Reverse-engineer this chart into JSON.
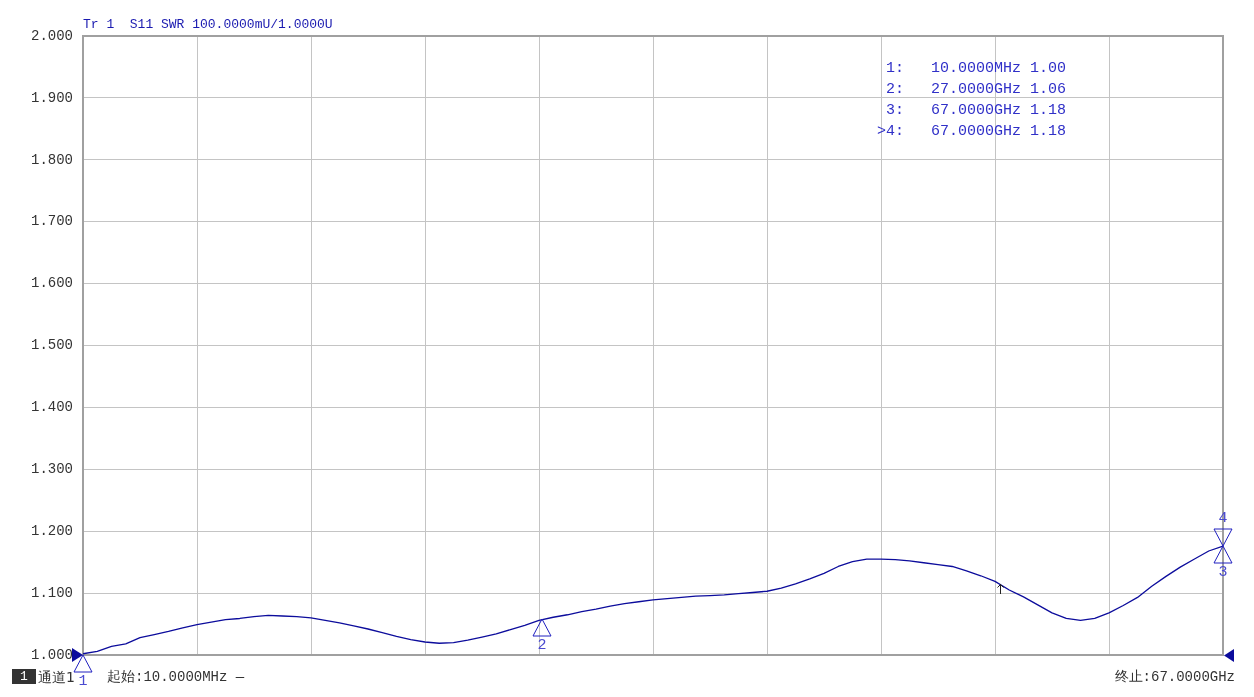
{
  "chart_data": {
    "type": "line",
    "title": "Tr 1  S11 SWR 100.0000mU/1.0000U",
    "categories": [
      null,
      null,
      null,
      null,
      null,
      null,
      null,
      null,
      null,
      null,
      null,
      null,
      null,
      null,
      null,
      null,
      null,
      null,
      null,
      null,
      null,
      null,
      null,
      null,
      null,
      null,
      null,
      null,
      null,
      null,
      null,
      null,
      null,
      null,
      null,
      null,
      null,
      null,
      null,
      null,
      null,
      null,
      null,
      null,
      null,
      null,
      null,
      null,
      null,
      null,
      null,
      null,
      null,
      null,
      null,
      null,
      null,
      null,
      null,
      null,
      null,
      null,
      null,
      null,
      null,
      null,
      null,
      null,
      null,
      null,
      null,
      null,
      null,
      null,
      null,
      null,
      null,
      null,
      null,
      null,
      null
    ],
    "values": [
      1.002,
      1.006,
      1.014,
      1.018,
      1.028,
      1.033,
      1.038,
      1.044,
      1.049,
      1.053,
      1.057,
      1.059,
      1.062,
      1.064,
      1.063,
      1.062,
      1.06,
      1.056,
      1.052,
      1.047,
      1.042,
      1.036,
      1.03,
      1.025,
      1.021,
      1.019,
      1.02,
      1.024,
      1.029,
      1.034,
      1.041,
      1.048,
      1.056,
      1.061,
      1.065,
      1.07,
      1.074,
      1.079,
      1.083,
      1.086,
      1.089,
      1.091,
      1.093,
      1.095,
      1.096,
      1.097,
      1.099,
      1.101,
      1.103,
      1.108,
      1.115,
      1.123,
      1.132,
      1.143,
      1.151,
      1.155,
      1.155,
      1.154,
      1.152,
      1.149,
      1.146,
      1.143,
      1.136,
      1.128,
      1.119,
      1.105,
      1.094,
      1.081,
      1.068,
      1.059,
      1.056,
      1.059,
      1.068,
      1.08,
      1.093,
      1.111,
      1.127,
      1.142,
      1.155,
      1.168,
      1.176
    ],
    "color": "#0c0c9c",
    "ylim": [
      1,
      2
    ],
    "yticks": [
      {
        "value": 1,
        "label": "1.000"
      },
      {
        "value": 1.1,
        "label": "1.100"
      },
      {
        "value": 1.2,
        "label": "1.200"
      },
      {
        "value": 1.3,
        "label": "1.300"
      },
      {
        "value": 1.4,
        "label": "1.400"
      },
      {
        "value": 1.5,
        "label": "1.500"
      },
      {
        "value": 1.6,
        "label": "1.600"
      },
      {
        "value": 1.7,
        "label": "1.700"
      },
      {
        "value": 1.8,
        "label": "1.800"
      },
      {
        "value": 1.9,
        "label": "1.900"
      },
      {
        "value": 2,
        "label": "2.000"
      }
    ],
    "grid": true,
    "tick_labels": "y",
    "annotations": [
      "1",
      "2",
      "3",
      "4",
      "1:   10.0000MHz 1.00",
      "2:   27.0000GHz 1.06",
      "3:   67.0000GHz 1.18",
      ">4:   67.0000GHz 1.18",
      "1",
      "通道1",
      "起始:10.0000MHz —",
      "终止:67.0000GHz"
    ]
  }
}
